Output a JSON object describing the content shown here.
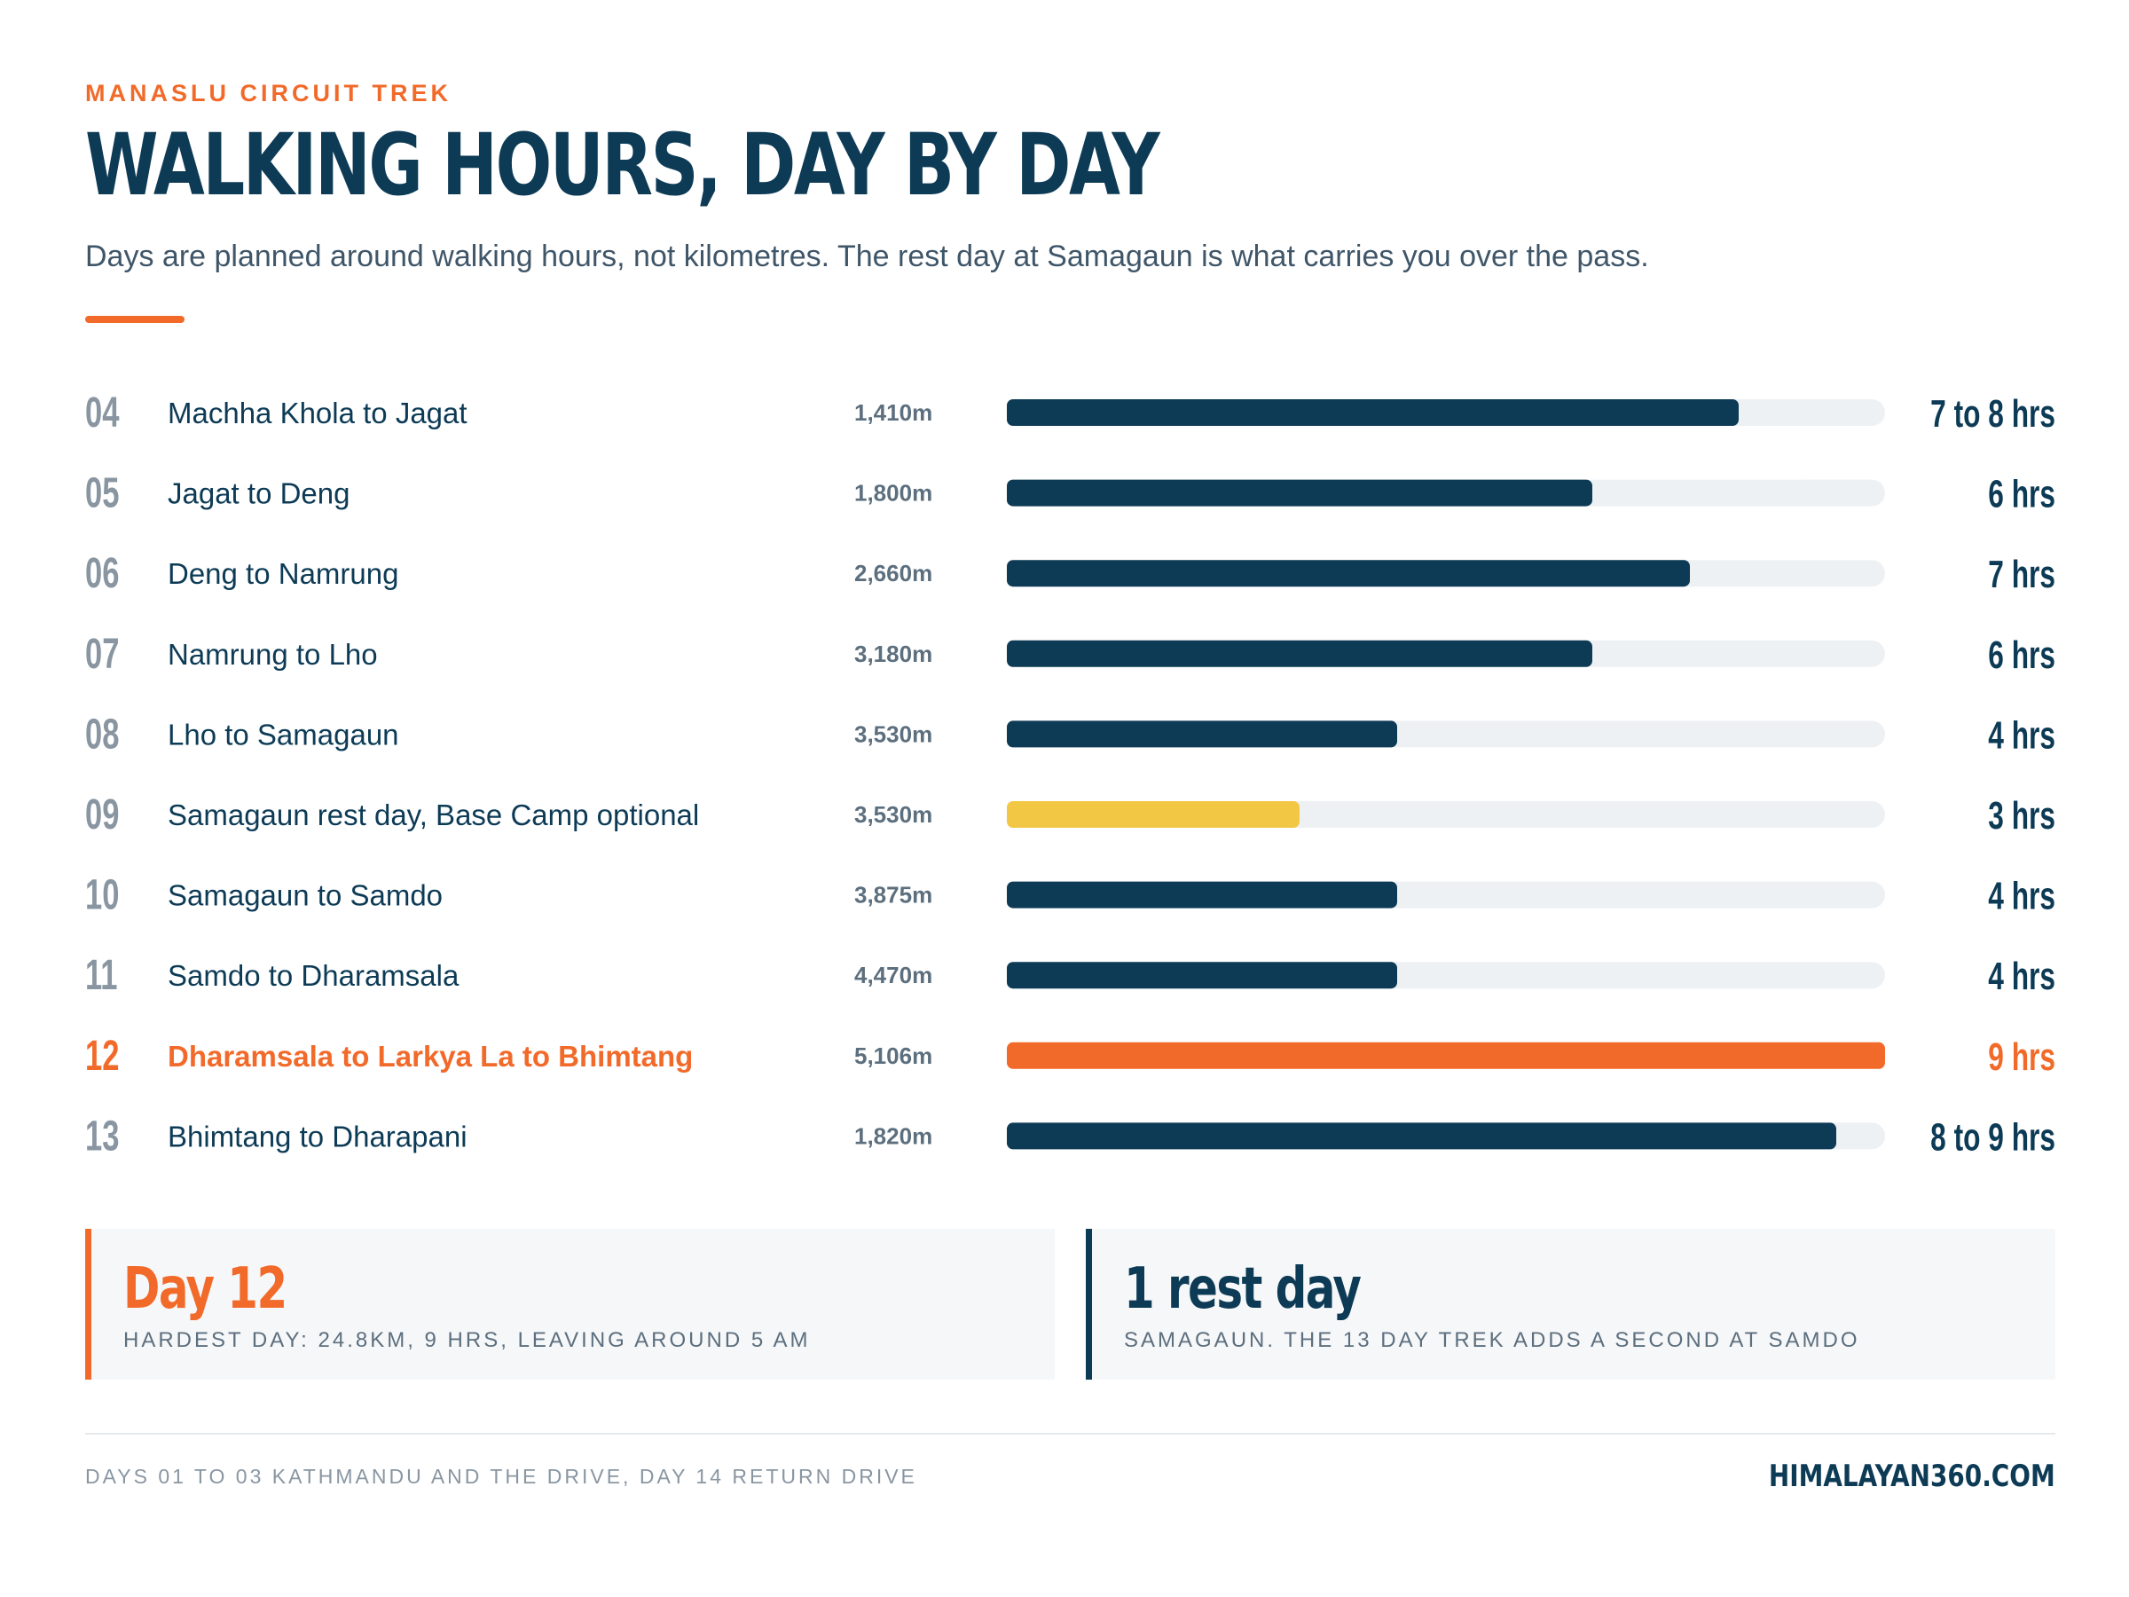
{
  "header": {
    "eyebrow": "MANASLU CIRCUIT TREK",
    "title": "WALKING HOURS, DAY BY DAY",
    "subtitle": "Days are planned around walking hours, not kilometres. The rest day at Samagaun is what carries you over the pass."
  },
  "colors": {
    "navy": "#0d3b56",
    "orange": "#f26a2a",
    "yellow": "#f2c744",
    "track": "#eef1f4",
    "muted": "#8996a2",
    "elevation_text": "#5c6f7e"
  },
  "chart_data": {
    "type": "bar",
    "orientation": "horizontal",
    "xlim": [
      0,
      9
    ],
    "rows": [
      {
        "day": "04",
        "route": "Machha Khola to Jagat",
        "elevation": "1,410m",
        "hours": 7.5,
        "hours_label": "7 to 8 hrs",
        "style": "normal"
      },
      {
        "day": "05",
        "route": "Jagat to Deng",
        "elevation": "1,800m",
        "hours": 6,
        "hours_label": "6 hrs",
        "style": "normal"
      },
      {
        "day": "06",
        "route": "Deng to Namrung",
        "elevation": "2,660m",
        "hours": 7,
        "hours_label": "7 hrs",
        "style": "normal"
      },
      {
        "day": "07",
        "route": "Namrung to Lho",
        "elevation": "3,180m",
        "hours": 6,
        "hours_label": "6 hrs",
        "style": "normal"
      },
      {
        "day": "08",
        "route": "Lho to Samagaun",
        "elevation": "3,530m",
        "hours": 4,
        "hours_label": "4 hrs",
        "style": "normal"
      },
      {
        "day": "09",
        "route": "Samagaun rest day, Base Camp optional",
        "elevation": "3,530m",
        "hours": 3,
        "hours_label": "3 hrs",
        "style": "rest"
      },
      {
        "day": "10",
        "route": "Samagaun to Samdo",
        "elevation": "3,875m",
        "hours": 4,
        "hours_label": "4 hrs",
        "style": "normal"
      },
      {
        "day": "11",
        "route": "Samdo to Dharamsala",
        "elevation": "4,470m",
        "hours": 4,
        "hours_label": "4 hrs",
        "style": "normal"
      },
      {
        "day": "12",
        "route": "Dharamsala to Larkya La to Bhimtang",
        "elevation": "5,106m",
        "hours": 9,
        "hours_label": "9 hrs",
        "style": "highlight"
      },
      {
        "day": "13",
        "route": "Bhimtang to Dharapani",
        "elevation": "1,820m",
        "hours": 8.5,
        "hours_label": "8 to 9 hrs",
        "style": "normal"
      }
    ]
  },
  "cards": [
    {
      "value": "Day 12",
      "caption": "HARDEST DAY: 24.8KM, 9 HRS, LEAVING AROUND 5 AM"
    },
    {
      "value": "1 rest day",
      "caption": "SAMAGAUN. THE 13 DAY TREK ADDS A SECOND AT SAMDO"
    }
  ],
  "footer": {
    "note": "DAYS 01 TO 03 KATHMANDU AND THE DRIVE, DAY 14 RETURN DRIVE",
    "brand": "HIMALAYAN360.COM"
  }
}
